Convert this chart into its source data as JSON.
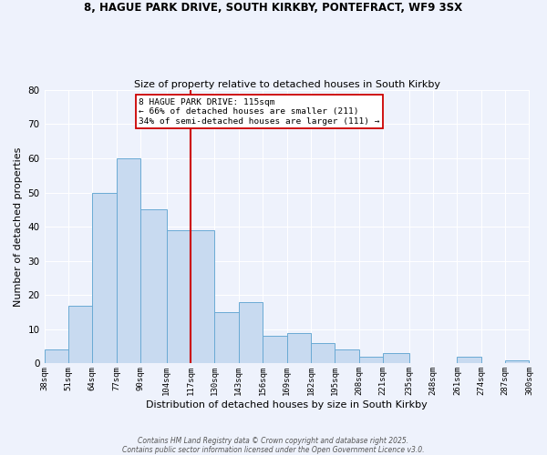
{
  "title1": "8, HAGUE PARK DRIVE, SOUTH KIRKBY, PONTEFRACT, WF9 3SX",
  "title2": "Size of property relative to detached houses in South Kirkby",
  "xlabel": "Distribution of detached houses by size in South Kirkby",
  "ylabel": "Number of detached properties",
  "bar_color": "#c8daf0",
  "bar_edge_color": "#6aaad4",
  "background_color": "#eef2fc",
  "grid_color": "#ffffff",
  "vline_x": 117,
  "vline_color": "#cc0000",
  "annotation_line1": "8 HAGUE PARK DRIVE: 115sqm",
  "annotation_line2": "← 66% of detached houses are smaller (211)",
  "annotation_line3": "34% of semi-detached houses are larger (111) →",
  "annotation_box_color": "#ffffff",
  "annotation_box_edge": "#cc0000",
  "bin_edges": [
    38,
    51,
    64,
    77,
    90,
    104,
    117,
    130,
    143,
    156,
    169,
    182,
    195,
    208,
    221,
    235,
    248,
    261,
    274,
    287,
    300
  ],
  "bin_counts": [
    4,
    17,
    50,
    60,
    45,
    39,
    39,
    15,
    18,
    8,
    9,
    6,
    4,
    2,
    3,
    0,
    0,
    2,
    0,
    1
  ],
  "tick_labels": [
    "38sqm",
    "51sqm",
    "64sqm",
    "77sqm",
    "90sqm",
    "104sqm",
    "117sqm",
    "130sqm",
    "143sqm",
    "156sqm",
    "169sqm",
    "182sqm",
    "195sqm",
    "208sqm",
    "221sqm",
    "235sqm",
    "248sqm",
    "261sqm",
    "274sqm",
    "287sqm",
    "300sqm"
  ],
  "ylim": [
    0,
    80
  ],
  "yticks": [
    0,
    10,
    20,
    30,
    40,
    50,
    60,
    70,
    80
  ],
  "footer1": "Contains HM Land Registry data © Crown copyright and database right 2025.",
  "footer2": "Contains public sector information licensed under the Open Government Licence v3.0."
}
